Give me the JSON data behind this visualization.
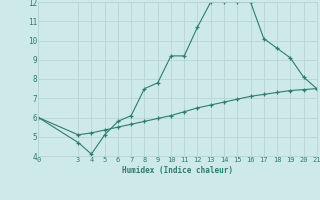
{
  "xlabel": "Humidex (Indice chaleur)",
  "line1_x": [
    0,
    3,
    4,
    5,
    6,
    7,
    8,
    9,
    10,
    11,
    12,
    13,
    14,
    15,
    16,
    17,
    18,
    19,
    20,
    21
  ],
  "line1_y": [
    6.0,
    4.7,
    4.1,
    5.1,
    5.8,
    6.1,
    7.5,
    7.8,
    9.2,
    9.2,
    10.7,
    12.0,
    12.0,
    12.0,
    12.0,
    10.1,
    9.6,
    9.1,
    8.1,
    7.5
  ],
  "line2_x": [
    0,
    3,
    4,
    5,
    6,
    7,
    8,
    9,
    10,
    11,
    12,
    13,
    14,
    15,
    16,
    17,
    18,
    19,
    20,
    21
  ],
  "line2_y": [
    6.0,
    5.1,
    5.2,
    5.35,
    5.5,
    5.65,
    5.8,
    5.95,
    6.1,
    6.3,
    6.5,
    6.65,
    6.8,
    6.95,
    7.1,
    7.2,
    7.3,
    7.4,
    7.45,
    7.5
  ],
  "line_color": "#2e7d6e",
  "bg_color": "#cde9e9",
  "grid_color": "#b8d4d4",
  "xlim": [
    0,
    21
  ],
  "ylim": [
    4,
    12
  ],
  "xticks": [
    0,
    3,
    4,
    5,
    6,
    7,
    8,
    9,
    10,
    11,
    12,
    13,
    14,
    15,
    16,
    17,
    18,
    19,
    20,
    21
  ],
  "yticks": [
    4,
    5,
    6,
    7,
    8,
    9,
    10,
    11,
    12
  ]
}
